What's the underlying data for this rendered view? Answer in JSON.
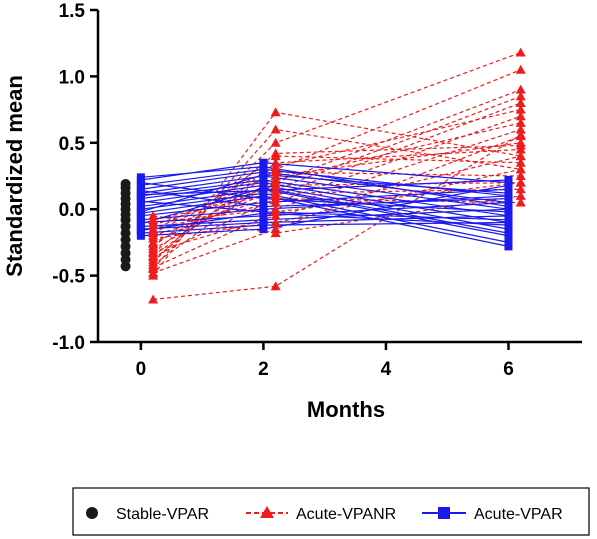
{
  "chart_data": {
    "type": "line",
    "xlabel": "Months",
    "ylabel": "Standardized mean",
    "xlim": [
      -0.7,
      7.2
    ],
    "ylim": [
      -1.0,
      1.5
    ],
    "x_ticks": [
      0,
      2,
      4,
      6
    ],
    "y_ticks": [
      -1.0,
      -0.5,
      0.0,
      0.5,
      1.0,
      1.5
    ],
    "x_tick_labels": [
      "0",
      "2",
      "4",
      "6"
    ],
    "y_tick_labels": [
      "-1.0",
      "-0.5",
      "0.0",
      "0.5",
      "1.0",
      "1.5"
    ],
    "legend_position": "bottom",
    "series": [
      {
        "name": "Stable-VPAR",
        "color": "#1a1a1a",
        "marker": "circle",
        "line": "none",
        "points": [
          {
            "x": -0.25,
            "y": -0.43
          },
          {
            "x": -0.25,
            "y": -0.38
          },
          {
            "x": -0.25,
            "y": -0.33
          },
          {
            "x": -0.25,
            "y": -0.28
          },
          {
            "x": -0.25,
            "y": -0.23
          },
          {
            "x": -0.25,
            "y": -0.18
          },
          {
            "x": -0.25,
            "y": -0.13
          },
          {
            "x": -0.25,
            "y": -0.08
          },
          {
            "x": -0.25,
            "y": -0.04
          },
          {
            "x": -0.25,
            "y": 0.0
          },
          {
            "x": -0.25,
            "y": 0.04
          },
          {
            "x": -0.25,
            "y": 0.08
          },
          {
            "x": -0.25,
            "y": 0.12
          },
          {
            "x": -0.25,
            "y": 0.16
          },
          {
            "x": -0.25,
            "y": 0.19
          }
        ]
      },
      {
        "name": "Acute-VPANR",
        "color": "#ee1c1c",
        "marker": "triangle",
        "line": "dashed",
        "x": [
          0.2,
          2.2,
          6.2
        ],
        "subjects": [
          [
            -0.68,
            -0.58,
            0.56
          ],
          [
            -0.5,
            0.73,
            0.4
          ],
          [
            -0.45,
            0.6,
            0.3
          ],
          [
            -0.4,
            0.5,
            1.18
          ],
          [
            -0.35,
            0.3,
            1.05
          ],
          [
            -0.3,
            0.2,
            0.9
          ],
          [
            -0.25,
            0.15,
            0.85
          ],
          [
            -0.2,
            0.1,
            0.8
          ],
          [
            -0.15,
            0.05,
            0.7
          ],
          [
            -0.1,
            0.0,
            0.6
          ],
          [
            -0.48,
            -0.15,
            0.55
          ],
          [
            -0.42,
            0.25,
            0.5
          ],
          [
            -0.38,
            0.35,
            0.45
          ],
          [
            -0.32,
            -0.05,
            0.4
          ],
          [
            -0.28,
            0.4,
            0.35
          ],
          [
            -0.22,
            -0.1,
            0.3
          ],
          [
            -0.18,
            0.28,
            0.25
          ],
          [
            -0.12,
            0.18,
            0.2
          ],
          [
            -0.08,
            0.12,
            0.15
          ],
          [
            -0.05,
            -0.18,
            0.1
          ],
          [
            -0.36,
            0.08,
            0.05
          ],
          [
            -0.26,
            0.22,
            0.65
          ],
          [
            -0.16,
            0.32,
            0.75
          ],
          [
            -0.44,
            -0.02,
            0.2
          ],
          [
            -0.33,
            0.42,
            0.48
          ]
        ]
      },
      {
        "name": "Acute-VPAR",
        "color": "#1a1aee",
        "marker": "square",
        "line": "solid",
        "x": [
          0.0,
          2.0,
          6.0
        ],
        "subjects": [
          [
            0.22,
            0.35,
            0.2
          ],
          [
            0.18,
            0.3,
            0.1
          ],
          [
            0.15,
            0.28,
            0.05
          ],
          [
            0.12,
            0.25,
            0.0
          ],
          [
            0.1,
            0.22,
            -0.05
          ],
          [
            0.08,
            0.2,
            -0.1
          ],
          [
            0.05,
            0.18,
            -0.15
          ],
          [
            0.02,
            0.15,
            -0.2
          ],
          [
            0.0,
            0.12,
            -0.25
          ],
          [
            -0.03,
            0.1,
            -0.28
          ],
          [
            -0.05,
            0.05,
            0.15
          ],
          [
            -0.08,
            0.0,
            0.1
          ],
          [
            -0.1,
            -0.05,
            0.05
          ],
          [
            -0.13,
            -0.08,
            0.0
          ],
          [
            -0.15,
            -0.1,
            -0.05
          ],
          [
            -0.18,
            -0.12,
            -0.1
          ],
          [
            -0.2,
            -0.15,
            0.18
          ],
          [
            0.2,
            0.08,
            -0.02
          ],
          [
            0.14,
            0.02,
            0.08
          ],
          [
            0.06,
            -0.02,
            -0.08
          ],
          [
            -0.02,
            0.26,
            0.12
          ],
          [
            -0.11,
            0.16,
            -0.18
          ],
          [
            0.24,
            0.32,
            0.02
          ],
          [
            -0.16,
            -0.03,
            -0.12
          ],
          [
            0.11,
            0.14,
            0.22
          ]
        ]
      }
    ]
  }
}
